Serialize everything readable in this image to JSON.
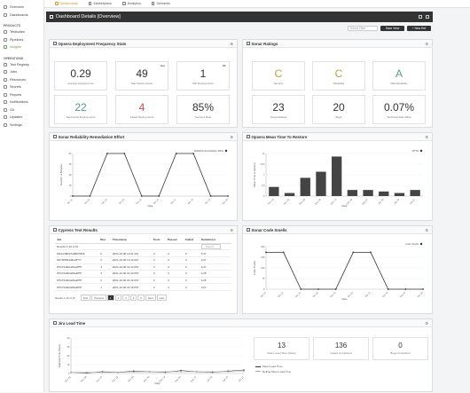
{
  "sidebar": {
    "items_top": [
      {
        "label": "Overview",
        "icon": "home-icon"
      },
      {
        "label": "Dashboards",
        "icon": "dashboard-icon"
      }
    ],
    "products_heading": "PRODUCTS",
    "products": [
      {
        "label": "Testsuites",
        "icon": "testsuite-icon"
      },
      {
        "label": "Pipelines",
        "icon": "pipeline-icon"
      },
      {
        "label": "Insights",
        "icon": "insights-icon",
        "active": true
      }
    ],
    "operations_heading": "OPERATIONS",
    "operations": [
      {
        "label": "Test Registry",
        "icon": "registry-icon"
      },
      {
        "label": "Jobs",
        "icon": "jobs-icon"
      },
      {
        "label": "Resources",
        "icon": "resources-icon"
      },
      {
        "label": "Secrets",
        "icon": "key-icon"
      },
      {
        "label": "Reports",
        "icon": "report-icon"
      },
      {
        "label": "Notifications",
        "icon": "bell-icon"
      },
      {
        "label": "Git",
        "icon": "git-icon"
      },
      {
        "label": "Updates",
        "icon": "update-icon"
      },
      {
        "label": "Settings",
        "icon": "gear-icon"
      }
    ]
  },
  "topnav": [
    {
      "label": "Dashboards",
      "active": true
    },
    {
      "label": "Marketplace"
    },
    {
      "label": "Analytics"
    },
    {
      "label": "Semantic"
    }
  ],
  "header": {
    "title": "Dashboard Details [Overview]"
  },
  "controls": {
    "select_placeholder": "Select Filter",
    "save_label": "Save View",
    "new_label": "+ New Ref"
  },
  "panels": {
    "opsera": {
      "title": "Opsera Deployment Frequency Stats",
      "stats": [
        {
          "value": "0.29",
          "label": "Average Deployments",
          "color": "#333"
        },
        {
          "value": "49",
          "label": "Max Deployments",
          "tag": "Max",
          "color": "#333"
        },
        {
          "value": "1",
          "label": "Min Deployments",
          "tag": "Min",
          "color": "#333"
        },
        {
          "value": "22",
          "label": "Successful Deployments",
          "color": "#5b9a8b"
        },
        {
          "value": "4",
          "label": "Failed Deployments",
          "color": "#c0504d"
        },
        {
          "value": "85%",
          "label": "Success Rate",
          "color": "#333"
        }
      ]
    },
    "sonar_ratings": {
      "title": "Sonar Ratings",
      "stats": [
        {
          "value": "C",
          "label": "Security",
          "color": "#b5a33a"
        },
        {
          "value": "C",
          "label": "Reliability",
          "color": "#b5a33a"
        },
        {
          "value": "A",
          "label": "Maintainability",
          "color": "#5b9a8b"
        },
        {
          "value": "23",
          "label": "Vulnerabilities",
          "color": "#333"
        },
        {
          "value": "20",
          "label": "Bugs",
          "color": "#333"
        },
        {
          "value": "0.07%",
          "label": "Technical Debt Ratio",
          "color": "#333"
        }
      ]
    },
    "sonar_reliability": {
      "title": "Sonar Reliability Remediation Effort"
    },
    "mttr": {
      "title": "Opsera Mean Time To Restore"
    },
    "cypress": {
      "title": "Cypress Test Results"
    },
    "code_smells": {
      "title": "Sonar Code Smells"
    },
    "jira": {
      "title": "Jira Lead Time"
    }
  },
  "chart_data": [
    {
      "type": "line",
      "name": "sonar-reliability",
      "legend": "Reliability Remediation Effort",
      "xlabel": "Date",
      "ylabel": "Number of Minutes",
      "x": [
        "Oct 11",
        "Oct 12",
        "Oct 13",
        "Oct 14",
        "Oct 15",
        "Oct 16",
        "Oct 17",
        "Oct 18",
        "Oct 19",
        "Oct 20"
      ],
      "values": [
        0,
        0,
        60,
        60,
        0,
        0,
        60,
        60,
        0,
        0
      ],
      "ylim": [
        0,
        60
      ]
    },
    {
      "type": "bar",
      "name": "mttr",
      "legend": "MTTR",
      "xlabel": "Date",
      "ylabel": "Mean Time to Restore",
      "categories": [
        "Nov 15",
        "Nov 22",
        "Nov 29",
        "Dec 06",
        "Dec 13",
        "Dec 20",
        "Dec 27",
        "Jan 03",
        "Jan 10",
        "Jan 17"
      ],
      "values": [
        3,
        1,
        6,
        8,
        13,
        2,
        2,
        1.5,
        1,
        2
      ],
      "ylim": [
        0,
        14
      ]
    },
    {
      "type": "line",
      "name": "code-smells",
      "legend": "Code Smells",
      "xlabel": "Date",
      "ylabel": "Code Smells",
      "x": [
        "Oct 11",
        "Oct 12",
        "Oct 13",
        "Oct 14",
        "Oct 15",
        "Oct 16",
        "Oct 17",
        "Oct 18",
        "Oct 19",
        "Oct 20"
      ],
      "values": [
        260,
        260,
        0,
        0,
        0,
        260,
        260,
        0,
        0,
        0
      ],
      "ylim": [
        0,
        300
      ]
    },
    {
      "type": "scatter",
      "name": "jira-lead-time",
      "xlabel": "Date",
      "ylabel": "Elapsed Time (Days)",
      "x": [
        "Nov 01",
        "Nov 08",
        "Nov 15",
        "Nov 22",
        "Nov 29",
        "Dec 06",
        "Dec 13",
        "Dec 20",
        "Dec 27",
        "Jan 03",
        "Jan 10",
        "Jan 17"
      ],
      "series": [
        {
          "name": "Mean Lead Time",
          "values": [
            2,
            1,
            3,
            2,
            4,
            3,
            2,
            5,
            3,
            2,
            4,
            6
          ]
        },
        {
          "name": "Rolling Mean Lead Time",
          "values": [
            2,
            2,
            2,
            2,
            2.5,
            3,
            3,
            3,
            3,
            3,
            3,
            3.5
          ]
        }
      ],
      "ylim": [
        0,
        60
      ]
    }
  ],
  "cypress": {
    "columns": [
      "Job",
      "Run",
      "Timestamp",
      "Tests",
      "Passed",
      "Failed",
      "Duration(s)"
    ],
    "filter_placeholder": "Search...",
    "rows": [
      [
        "0f4dcc98627a6897f6b8",
        "6",
        "2021-10-06 10:21 AM",
        "3",
        "3",
        "0",
        "0.27"
      ],
      [
        "6f27f4f8fd4d6e2ff77f",
        "5",
        "2021-10-06 10:19 AM",
        "3",
        "3",
        "0",
        "0.27"
      ],
      [
        "9f7272df4d4d6a2f5f7",
        "4",
        "2021-10-06 01:44 PM",
        "3",
        "3",
        "0",
        "0.27"
      ],
      [
        "9f7272df4d4d6a2f5f7",
        "3",
        "2021-10-06 01:40 PM",
        "3",
        "3",
        "0",
        "0.28"
      ],
      [
        "9f7272df4d4d6a2f5f7",
        "2",
        "2021-10-06 01:32 PM",
        "3",
        "3",
        "0",
        "0.26"
      ],
      [
        "9f7272df4d4d6a2f5f7",
        "1",
        "2021-10-06 01:15 PM",
        "3",
        "3",
        "0",
        "0.27"
      ]
    ],
    "page_info": "Results 1-10 of 10",
    "page_size": "Results 1-10 of 10",
    "pages": [
      "First",
      "Previous",
      "1",
      "2",
      "3",
      "4",
      "5",
      "Next",
      "Last"
    ]
  },
  "jira_stats": [
    {
      "value": "13",
      "label": "Mean Lead Time (Days)"
    },
    {
      "value": "136",
      "label": "Issues Completed"
    },
    {
      "value": "0",
      "label": "Bugs Completed"
    }
  ],
  "jira_legend": [
    "Mean Lead Time",
    "Rolling Mean Lead Time"
  ]
}
